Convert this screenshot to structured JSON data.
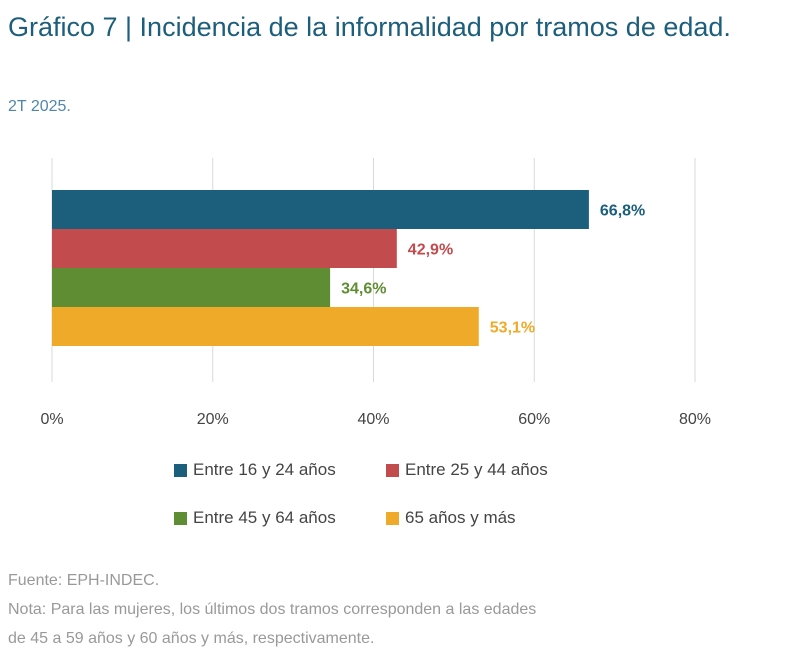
{
  "header": {
    "title": "Gráfico 7 | Incidencia de la informalidad por tramos de edad.",
    "subtitle": "2T 2025."
  },
  "chart_data": {
    "type": "bar",
    "orientation": "horizontal",
    "title": "Gráfico 7 | Incidencia de la informalidad por tramos de edad.",
    "subtitle": "2T 2025.",
    "categories": [
      "Entre 16 y 24 años",
      "Entre 25 y 44 años",
      "Entre 45 y 64 años",
      "65 años y más"
    ],
    "values": [
      66.8,
      42.9,
      34.6,
      53.1
    ],
    "value_labels": [
      "66,8%",
      "42,9%",
      "34,6%",
      "53,1%"
    ],
    "colors": [
      "#1c5f7d",
      "#c24b4e",
      "#5f8d33",
      "#f0aa2a"
    ],
    "xlim": [
      0,
      80
    ],
    "xticks": [
      0,
      20,
      40,
      60,
      80
    ],
    "xtick_labels": [
      "0%",
      "20%",
      "40%",
      "60%",
      "80%"
    ],
    "grid": "vertical",
    "legend_position": "bottom",
    "xlabel": "",
    "ylabel": ""
  },
  "legend": {
    "items": [
      {
        "label": "Entre 16 y 24 años",
        "color": "#1c5f7d"
      },
      {
        "label": "Entre 25 y 44 años",
        "color": "#c24b4e"
      },
      {
        "label": "Entre 45 y 64 años",
        "color": "#5f8d33"
      },
      {
        "label": "65 años y más",
        "color": "#f0aa2a"
      }
    ]
  },
  "footer": {
    "source": "Fuente: EPH-INDEC.",
    "note_line1": "Nota: Para las mujeres, los últimos dos tramos corresponden a las edades",
    "note_line2": "de 45 a 59 años y 60 años y más, respectivamente."
  }
}
